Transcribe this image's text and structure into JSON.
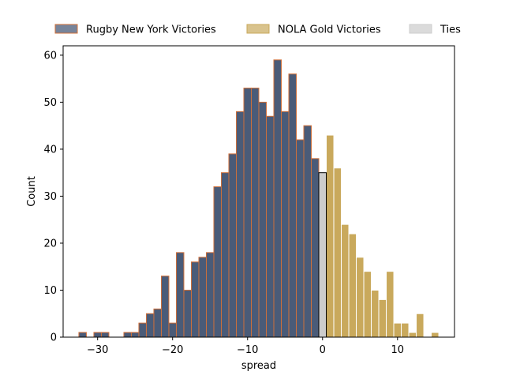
{
  "chart_data": {
    "type": "bar",
    "title": "",
    "xlabel": "spread",
    "ylabel": "Count",
    "xlim": [
      -34.6,
      17.6
    ],
    "ylim": [
      0,
      62
    ],
    "x_ticks": [
      -30,
      -20,
      -10,
      0,
      10
    ],
    "x_tick_labels": [
      "−30",
      "−20",
      "−10",
      "0",
      "10"
    ],
    "y_ticks": [
      0,
      10,
      20,
      30,
      40,
      50,
      60
    ],
    "y_tick_labels": [
      "0",
      "10",
      "20",
      "30",
      "40",
      "50",
      "60"
    ],
    "bin_width": 1,
    "legend_position": "top, above plot",
    "series": [
      {
        "name": "Rugby New York Victories",
        "color": "#4a5b78",
        "edge_color": "#d0703a",
        "x": [
          -32,
          -30,
          -29,
          -26,
          -25,
          -24,
          -23,
          -22,
          -21,
          -20,
          -19,
          -18,
          -17,
          -16,
          -15,
          -14,
          -13,
          -12,
          -11,
          -10,
          -9,
          -8,
          -7,
          -6,
          -5,
          -4,
          -3,
          -2,
          -1
        ],
        "values": [
          1,
          1,
          1,
          1,
          1,
          3,
          5,
          6,
          13,
          3,
          18,
          10,
          16,
          17,
          18,
          32,
          35,
          39,
          48,
          53,
          53,
          50,
          47,
          59,
          48,
          56,
          42,
          45,
          38
        ]
      },
      {
        "name": "NOLA Gold Victories",
        "color": "#c9a95c",
        "edge_color": "#ffffff",
        "x": [
          1,
          2,
          3,
          4,
          5,
          6,
          7,
          8,
          9,
          10,
          11,
          12,
          13,
          15
        ],
        "values": [
          43,
          36,
          24,
          22,
          17,
          14,
          10,
          8,
          14,
          3,
          3,
          1,
          5,
          1
        ]
      },
      {
        "name": "Ties",
        "color": "#cccccc",
        "edge_color": "#000000",
        "x": [
          0
        ],
        "values": [
          35
        ]
      }
    ]
  }
}
